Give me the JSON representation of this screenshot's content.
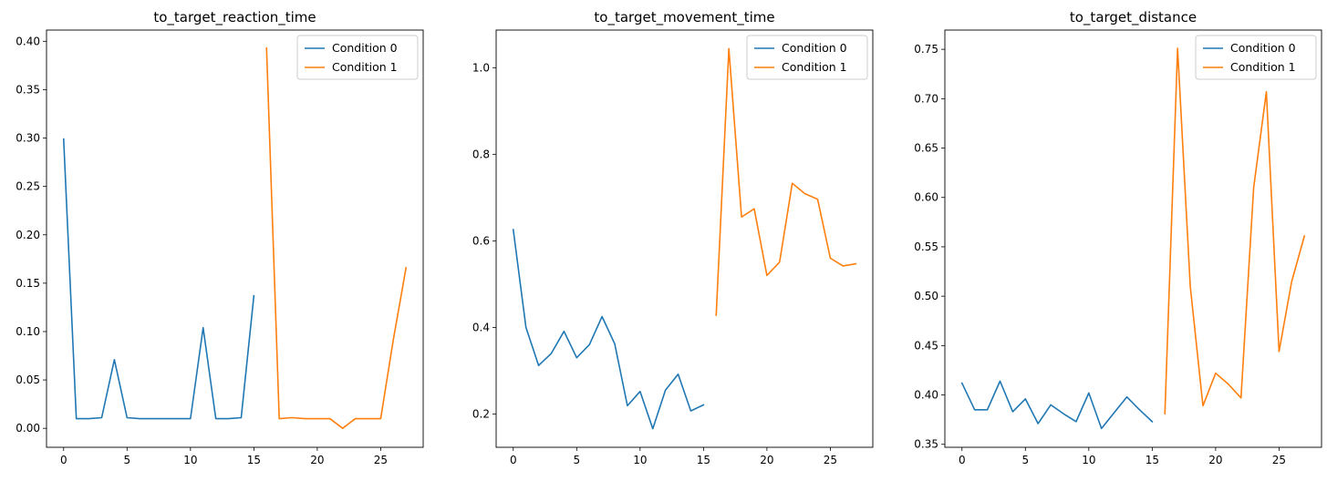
{
  "chart_data": [
    {
      "type": "line",
      "title": "to_target_reaction_time",
      "xlim": [
        -1.35,
        28.35
      ],
      "ylim": [
        -0.0196,
        0.4116
      ],
      "xticks": [
        0,
        5,
        10,
        15,
        20,
        25
      ],
      "xtick_labels": [
        "0",
        "5",
        "10",
        "15",
        "20",
        "25"
      ],
      "yticks": [
        0.0,
        0.05,
        0.1,
        0.15,
        0.2,
        0.25,
        0.3,
        0.35,
        0.4
      ],
      "ytick_labels": [
        "0.00",
        "0.05",
        "0.10",
        "0.15",
        "0.20",
        "0.25",
        "0.30",
        "0.35",
        "0.40"
      ],
      "legend_position": "top-right",
      "series": [
        {
          "name": "Condition 0",
          "color": "#1f77b4",
          "x": [
            0,
            1,
            2,
            3,
            4,
            5,
            6,
            7,
            8,
            9,
            10,
            11,
            12,
            13,
            14,
            15
          ],
          "y": [
            0.299,
            0.01,
            0.01,
            0.011,
            0.071,
            0.011,
            0.01,
            0.01,
            0.01,
            0.01,
            0.01,
            0.104,
            0.01,
            0.01,
            0.011,
            0.137
          ]
        },
        {
          "name": "Condition 1",
          "color": "#ff7f0e",
          "x": [
            16,
            17,
            18,
            19,
            20,
            21,
            22,
            23,
            24,
            25,
            26,
            27
          ],
          "y": [
            0.393,
            0.01,
            0.011,
            0.01,
            0.01,
            0.01,
            0.0,
            0.01,
            0.01,
            0.01,
            0.092,
            0.166
          ]
        }
      ]
    },
    {
      "type": "line",
      "title": "to_target_movement_time",
      "xlim": [
        -1.35,
        28.35
      ],
      "ylim": [
        0.123,
        1.087
      ],
      "xticks": [
        0,
        5,
        10,
        15,
        20,
        25
      ],
      "xtick_labels": [
        "0",
        "5",
        "10",
        "15",
        "20",
        "25"
      ],
      "yticks": [
        0.2,
        0.4,
        0.6,
        0.8,
        1.0
      ],
      "ytick_labels": [
        "0.2",
        "0.4",
        "0.6",
        "0.8",
        "1.0"
      ],
      "legend_position": "top-right",
      "series": [
        {
          "name": "Condition 0",
          "color": "#1f77b4",
          "x": [
            0,
            1,
            2,
            3,
            4,
            5,
            6,
            7,
            8,
            9,
            10,
            11,
            12,
            13,
            14,
            15
          ],
          "y": [
            0.626,
            0.4,
            0.312,
            0.34,
            0.391,
            0.33,
            0.36,
            0.425,
            0.362,
            0.219,
            0.252,
            0.166,
            0.255,
            0.292,
            0.207,
            0.221
          ]
        },
        {
          "name": "Condition 1",
          "color": "#ff7f0e",
          "x": [
            16,
            17,
            18,
            19,
            20,
            21,
            22,
            23,
            24,
            25,
            26,
            27
          ],
          "y": [
            0.428,
            1.044,
            0.655,
            0.674,
            0.52,
            0.551,
            0.733,
            0.709,
            0.696,
            0.56,
            0.542,
            0.547
          ]
        }
      ]
    },
    {
      "type": "line",
      "title": "to_target_distance",
      "xlim": [
        -1.35,
        28.35
      ],
      "ylim": [
        0.347,
        0.7695
      ],
      "xticks": [
        0,
        5,
        10,
        15,
        20,
        25
      ],
      "xtick_labels": [
        "0",
        "5",
        "10",
        "15",
        "20",
        "25"
      ],
      "yticks": [
        0.35,
        0.4,
        0.45,
        0.5,
        0.55,
        0.6,
        0.65,
        0.7,
        0.75
      ],
      "ytick_labels": [
        "0.35",
        "0.40",
        "0.45",
        "0.50",
        "0.55",
        "0.60",
        "0.65",
        "0.70",
        "0.75"
      ],
      "legend_position": "top-right",
      "series": [
        {
          "name": "Condition 0",
          "color": "#1f77b4",
          "x": [
            0,
            1,
            2,
            3,
            4,
            5,
            6,
            7,
            8,
            9,
            10,
            11,
            12,
            13,
            14,
            15
          ],
          "y": [
            0.412,
            0.385,
            0.385,
            0.414,
            0.383,
            0.396,
            0.371,
            0.39,
            0.381,
            0.373,
            0.402,
            0.366,
            0.382,
            0.398,
            0.385,
            0.373
          ]
        },
        {
          "name": "Condition 1",
          "color": "#ff7f0e",
          "x": [
            16,
            17,
            18,
            19,
            20,
            21,
            22,
            23,
            24,
            25,
            26,
            27
          ],
          "y": [
            0.381,
            0.751,
            0.51,
            0.389,
            0.422,
            0.411,
            0.397,
            0.61,
            0.707,
            0.444,
            0.515,
            0.561
          ]
        }
      ]
    }
  ]
}
